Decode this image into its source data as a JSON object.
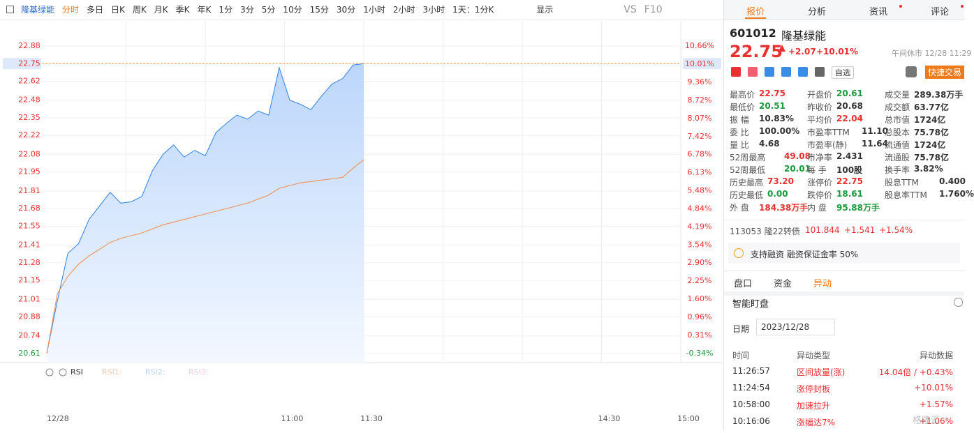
{
  "toolbar": {
    "stock": "隆基绿能",
    "periods": [
      "分时",
      "多日",
      "日K",
      "周K",
      "月K",
      "季K",
      "年K",
      "1分",
      "3分",
      "5分",
      "10分",
      "15分",
      "30分",
      "1小时",
      "2小时",
      "3小时",
      "1天：1分K"
    ],
    "display": "显示",
    "vs": "VS",
    "f10": "F10"
  },
  "chart_data": {
    "type": "line",
    "x": [
      0,
      4,
      8,
      12,
      16,
      20,
      24,
      28,
      32,
      36,
      40,
      44,
      48,
      52,
      56,
      60,
      64,
      68,
      72,
      76,
      80,
      84,
      88,
      92,
      96,
      100,
      104,
      108,
      112,
      116,
      120
    ],
    "series": [
      {
        "color": "#3d8be8",
        "values": [
          20.61,
          21.0,
          21.35,
          21.42,
          21.6,
          21.7,
          21.8,
          21.72,
          21.73,
          21.77,
          21.96,
          22.08,
          22.15,
          22.06,
          22.11,
          22.07,
          22.24,
          22.31,
          22.37,
          22.34,
          22.4,
          22.37,
          22.72,
          22.48,
          22.45,
          22.41,
          22.51,
          22.6,
          22.64,
          22.74,
          22.75
        ]
      },
      {
        "color": "#f0925a",
        "values": [
          20.61,
          21.05,
          21.18,
          21.27,
          21.33,
          21.38,
          21.43,
          21.46,
          21.48,
          21.5,
          21.53,
          21.56,
          21.58,
          21.6,
          21.62,
          21.64,
          21.66,
          21.68,
          21.7,
          21.72,
          21.75,
          21.78,
          21.83,
          21.85,
          21.87,
          21.88,
          21.89,
          21.9,
          21.91,
          21.98,
          22.04
        ]
      }
    ],
    "xlim": [
      0,
      240
    ],
    "xticks": [
      {
        "value": 0,
        "label": "12/28"
      },
      {
        "value": 90,
        "label": "11:00"
      },
      {
        "value": 120,
        "label": "11:30"
      },
      {
        "value": 210,
        "label": "14:30"
      },
      {
        "value": 240,
        "label": "15:00"
      }
    ],
    "ylim": [
      20.61,
      22.88
    ],
    "yticks": [
      22.88,
      22.75,
      22.62,
      22.48,
      22.35,
      22.22,
      22.08,
      21.95,
      21.81,
      21.68,
      21.55,
      21.41,
      21.28,
      21.15,
      21.01,
      20.88,
      20.74,
      20.61
    ],
    "y2lim": [
      -0.34,
      10.66
    ],
    "y2ticks": [
      {
        "value": 10.66,
        "label": "10.66%"
      },
      {
        "value": 10.01,
        "label": "10.01%"
      },
      {
        "value": 9.36,
        "label": "9.36%"
      },
      {
        "value": 8.72,
        "label": "8.72%"
      },
      {
        "value": 8.07,
        "label": "8.07%"
      },
      {
        "value": 7.42,
        "label": "7.42%"
      },
      {
        "value": 6.78,
        "label": "6.78%"
      },
      {
        "value": 6.13,
        "label": "6.13%"
      },
      {
        "value": 5.48,
        "label": "5.48%"
      },
      {
        "value": 4.84,
        "label": "4.84%"
      },
      {
        "value": 4.19,
        "label": "4.19%"
      },
      {
        "value": 3.54,
        "label": "3.54%"
      },
      {
        "value": 2.9,
        "label": "2.90%"
      },
      {
        "value": 2.25,
        "label": "2.25%"
      },
      {
        "value": 1.6,
        "label": "1.60%"
      },
      {
        "value": 0.96,
        "label": "0.96%"
      },
      {
        "value": 0.31,
        "label": "0.31%"
      },
      {
        "value": -0.34,
        "label": "-0.34%"
      }
    ],
    "grid": true
  },
  "indicator": {
    "name": "RSI",
    "lines": [
      "RSI1:",
      "RSI2:",
      "RSI3:"
    ]
  },
  "panel": {
    "tabs": [
      "报价",
      "分析",
      "资讯",
      "评论"
    ],
    "code": "601012",
    "name": "隆基绿能",
    "price": "22.75",
    "change": "+2.07",
    "change_pct": "+10.01%",
    "status": "午间休市 12/28 11:29",
    "watch": "自选",
    "trade": "快捷交易",
    "fields": [
      [
        {
          "label": "最高价",
          "value": "22.75",
          "color": "#e93030"
        },
        {
          "label": "开盘价",
          "value": "20.61",
          "color": "#1a9a3c"
        },
        {
          "label": "成交量",
          "value": "289.38万手",
          "color": "#333333"
        }
      ],
      [
        {
          "label": "最低价",
          "value": "20.51",
          "color": "#1a9a3c"
        },
        {
          "label": "昨收价",
          "value": "20.68",
          "color": "#333333"
        },
        {
          "label": "成交额",
          "value": "63.77亿",
          "color": "#333333"
        }
      ],
      [
        {
          "label": "振 幅",
          "value": "10.83%",
          "color": "#333333"
        },
        {
          "label": "平均价",
          "value": "22.04",
          "color": "#e93030"
        },
        {
          "label": "总市值",
          "value": "1724亿",
          "color": "#333333"
        }
      ],
      [
        {
          "label": "委 比",
          "value": "100.00%",
          "color": "#333333"
        },
        {
          "label": "市盈率TTM",
          "value": "11.10",
          "color": "#333333"
        },
        {
          "label": "总股本",
          "value": "75.78亿",
          "color": "#333333"
        }
      ],
      [
        {
          "label": "量 比",
          "value": "4.68",
          "color": "#333333"
        },
        {
          "label": "市盈率(静)",
          "value": "11.64",
          "color": "#333333"
        },
        {
          "label": "流通值",
          "value": "1724亿",
          "color": "#333333"
        }
      ],
      [
        {
          "label": "52周最高",
          "value": "49.08",
          "color": "#e93030"
        },
        {
          "label": "市净率",
          "value": "2.431",
          "color": "#333333"
        },
        {
          "label": "流通股",
          "value": "75.78亿",
          "color": "#333333"
        }
      ],
      [
        {
          "label": "52周最低",
          "value": "20.01",
          "color": "#1a9a3c"
        },
        {
          "label": "每 手",
          "value": "100股",
          "color": "#333333"
        },
        {
          "label": "换手率",
          "value": "3.82%",
          "color": "#333333"
        }
      ],
      [
        {
          "label": "历史最高",
          "value": "73.20",
          "color": "#e93030"
        },
        {
          "label": "涨停价",
          "value": "22.75",
          "color": "#e93030"
        },
        {
          "label": "股息TTM",
          "value": "0.400",
          "color": "#333333"
        }
      ],
      [
        {
          "label": "历史最低",
          "value": "0.00",
          "color": "#1a9a3c"
        },
        {
          "label": "跌停价",
          "value": "18.61",
          "color": "#1a9a3c"
        },
        {
          "label": "股息率TTM",
          "value": "1.760%",
          "color": "#333333"
        }
      ],
      [
        {
          "label": "外 盘",
          "value": "184.38万手",
          "color": "#e93030"
        },
        {
          "label": "内 盘",
          "value": "95.88万手",
          "color": "#1a9a3c"
        }
      ]
    ],
    "bond": {
      "name": "113053 隆22转债",
      "price": "101.844",
      "change": "+1.541",
      "pct": "+1.54%"
    },
    "margin": "支持融资 融资保证金率 50%",
    "subtabs": [
      "盘口",
      "资金",
      "异动"
    ],
    "monitor": {
      "title": "智能盯盘",
      "date_label": "日期",
      "date": "2023/12/28",
      "headers": [
        "时间",
        "异动类型",
        "异动数据"
      ],
      "rows": [
        [
          "11:26:57",
          "区间放量(涨)",
          "14.04倍 / +0.43%"
        ],
        [
          "11:24:54",
          "涨停封板",
          "+10.01%"
        ],
        [
          "10:58:00",
          "加速拉升",
          "+1.57%"
        ],
        [
          "10:16:06",
          "涨幅达7%",
          "+1.06%"
        ]
      ]
    }
  },
  "watermark": "格隆汇"
}
